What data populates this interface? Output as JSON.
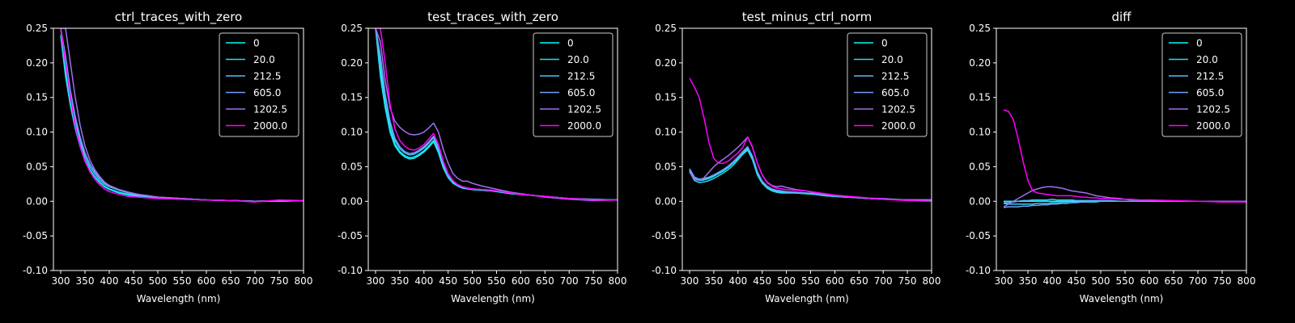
{
  "figure": {
    "background": "#000000",
    "foreground": "#ffffff"
  },
  "legend_entries": [
    "0",
    "20.0",
    "212.5",
    "605.0",
    "1202.5",
    "2000.0"
  ],
  "series_colors": [
    "#00ffff",
    "#21deef",
    "#4cc0ff",
    "#6fa0ff",
    "#a070f0",
    "#ff00ff"
  ],
  "chart_data": [
    {
      "type": "line",
      "title": "ctrl_traces_with_zero",
      "xlabel": "Wavelength (nm)",
      "ylabel": "",
      "xlim": [
        285,
        800
      ],
      "ylim": [
        -0.1,
        0.25
      ],
      "xticks": [
        300,
        350,
        400,
        450,
        500,
        550,
        600,
        650,
        700,
        750,
        800
      ],
      "yticks": [
        -0.1,
        -0.05,
        0.0,
        0.05,
        0.1,
        0.15,
        0.2,
        0.25
      ],
      "legend_position": "top-right",
      "x": [
        300,
        310,
        320,
        330,
        340,
        350,
        360,
        370,
        380,
        390,
        400,
        420,
        440,
        460,
        480,
        500,
        550,
        600,
        650,
        700,
        750,
        800
      ],
      "series": [
        {
          "name": "0",
          "values": [
            0.25,
            0.19,
            0.145,
            0.11,
            0.082,
            0.06,
            0.046,
            0.036,
            0.028,
            0.022,
            0.018,
            0.013,
            0.01,
            0.008,
            0.006,
            0.005,
            0.003,
            0.002,
            0.001,
            0.0,
            0.0,
            0.001
          ]
        },
        {
          "name": "20.0",
          "values": [
            0.24,
            0.18,
            0.138,
            0.105,
            0.079,
            0.058,
            0.045,
            0.035,
            0.027,
            0.021,
            0.017,
            0.012,
            0.009,
            0.007,
            0.006,
            0.005,
            0.003,
            0.002,
            0.001,
            0.0,
            0.0,
            0.001
          ]
        },
        {
          "name": "212.5",
          "values": [
            0.25,
            0.2,
            0.15,
            0.115,
            0.087,
            0.065,
            0.05,
            0.04,
            0.031,
            0.025,
            0.021,
            0.016,
            0.012,
            0.009,
            0.007,
            0.006,
            0.004,
            0.002,
            0.001,
            0.0,
            0.001,
            0.001
          ]
        },
        {
          "name": "605.0",
          "values": [
            0.25,
            0.21,
            0.16,
            0.122,
            0.093,
            0.07,
            0.054,
            0.043,
            0.034,
            0.027,
            0.022,
            0.017,
            0.013,
            0.01,
            0.008,
            0.006,
            0.004,
            0.002,
            0.001,
            0.0,
            0.001,
            0.001
          ]
        },
        {
          "name": "1202.5",
          "values": [
            0.25,
            0.25,
            0.2,
            0.15,
            0.11,
            0.08,
            0.06,
            0.046,
            0.036,
            0.028,
            0.023,
            0.017,
            0.013,
            0.01,
            0.008,
            0.006,
            0.004,
            0.002,
            0.001,
            0.0,
            0.001,
            0.001
          ]
        },
        {
          "name": "2000.0",
          "values": [
            0.25,
            0.2,
            0.15,
            0.11,
            0.08,
            0.058,
            0.043,
            0.032,
            0.024,
            0.018,
            0.014,
            0.01,
            0.007,
            0.006,
            0.005,
            0.004,
            0.003,
            0.002,
            0.001,
            -0.001,
            0.002,
            0.001
          ]
        }
      ]
    },
    {
      "type": "line",
      "title": "test_traces_with_zero",
      "xlabel": "Wavelength (nm)",
      "ylabel": "",
      "xlim": [
        285,
        800
      ],
      "ylim": [
        -0.1,
        0.25
      ],
      "xticks": [
        300,
        350,
        400,
        450,
        500,
        550,
        600,
        650,
        700,
        750,
        800
      ],
      "yticks": [
        -0.1,
        -0.05,
        0.0,
        0.05,
        0.1,
        0.15,
        0.2,
        0.25
      ],
      "legend_position": "top-right",
      "x": [
        300,
        310,
        320,
        330,
        340,
        350,
        360,
        370,
        380,
        390,
        400,
        410,
        420,
        430,
        440,
        450,
        460,
        470,
        480,
        490,
        500,
        520,
        540,
        560,
        580,
        600,
        650,
        700,
        750,
        800
      ],
      "series": [
        {
          "name": "0",
          "values": [
            0.25,
            0.19,
            0.14,
            0.105,
            0.083,
            0.072,
            0.066,
            0.063,
            0.064,
            0.068,
            0.073,
            0.08,
            0.088,
            0.072,
            0.05,
            0.035,
            0.027,
            0.022,
            0.019,
            0.018,
            0.017,
            0.016,
            0.015,
            0.013,
            0.011,
            0.01,
            0.007,
            0.004,
            0.002,
            0.002
          ]
        },
        {
          "name": "20.0",
          "values": [
            0.25,
            0.18,
            0.135,
            0.1,
            0.08,
            0.07,
            0.064,
            0.061,
            0.062,
            0.066,
            0.071,
            0.078,
            0.086,
            0.07,
            0.048,
            0.034,
            0.026,
            0.022,
            0.019,
            0.018,
            0.017,
            0.016,
            0.015,
            0.013,
            0.011,
            0.01,
            0.007,
            0.004,
            0.002,
            0.002
          ]
        },
        {
          "name": "212.5",
          "values": [
            0.25,
            0.2,
            0.15,
            0.112,
            0.088,
            0.076,
            0.07,
            0.067,
            0.068,
            0.072,
            0.077,
            0.084,
            0.092,
            0.076,
            0.053,
            0.037,
            0.028,
            0.023,
            0.02,
            0.019,
            0.018,
            0.017,
            0.016,
            0.014,
            0.012,
            0.01,
            0.007,
            0.004,
            0.003,
            0.002
          ]
        },
        {
          "name": "605.0",
          "values": [
            0.25,
            0.21,
            0.155,
            0.116,
            0.091,
            0.079,
            0.072,
            0.069,
            0.07,
            0.074,
            0.079,
            0.086,
            0.094,
            0.078,
            0.054,
            0.038,
            0.029,
            0.024,
            0.021,
            0.019,
            0.018,
            0.017,
            0.016,
            0.014,
            0.012,
            0.01,
            0.007,
            0.004,
            0.003,
            0.002
          ]
        },
        {
          "name": "1202.5",
          "values": [
            0.25,
            0.23,
            0.175,
            0.135,
            0.116,
            0.107,
            0.101,
            0.097,
            0.096,
            0.097,
            0.1,
            0.106,
            0.113,
            0.1,
            0.075,
            0.055,
            0.04,
            0.033,
            0.029,
            0.029,
            0.026,
            0.022,
            0.019,
            0.016,
            0.013,
            0.011,
            0.006,
            0.003,
            0.001,
            0.002
          ]
        },
        {
          "name": "2000.0",
          "values": [
            0.25,
            0.25,
            0.2,
            0.14,
            0.105,
            0.088,
            0.08,
            0.075,
            0.074,
            0.077,
            0.082,
            0.09,
            0.098,
            0.082,
            0.058,
            0.04,
            0.03,
            0.024,
            0.021,
            0.019,
            0.018,
            0.017,
            0.016,
            0.014,
            0.012,
            0.01,
            0.007,
            0.004,
            0.002,
            0.002
          ]
        }
      ]
    },
    {
      "type": "line",
      "title": "test_minus_ctrl_norm",
      "xlabel": "Wavelength (nm)",
      "ylabel": "",
      "xlim": [
        285,
        800
      ],
      "ylim": [
        -0.1,
        0.25
      ],
      "xticks": [
        300,
        350,
        400,
        450,
        500,
        550,
        600,
        650,
        700,
        750,
        800
      ],
      "yticks": [
        -0.1,
        -0.05,
        0.0,
        0.05,
        0.1,
        0.15,
        0.2,
        0.25
      ],
      "legend_position": "top-right",
      "x": [
        300,
        310,
        320,
        330,
        340,
        350,
        360,
        370,
        380,
        390,
        400,
        410,
        420,
        430,
        440,
        450,
        460,
        470,
        480,
        490,
        500,
        520,
        540,
        560,
        580,
        600,
        650,
        700,
        750,
        800
      ],
      "series": [
        {
          "name": "0",
          "values": [
            0.045,
            0.033,
            0.03,
            0.031,
            0.033,
            0.036,
            0.04,
            0.044,
            0.049,
            0.055,
            0.062,
            0.07,
            0.076,
            0.062,
            0.04,
            0.027,
            0.02,
            0.016,
            0.014,
            0.013,
            0.013,
            0.012,
            0.011,
            0.01,
            0.008,
            0.007,
            0.005,
            0.003,
            0.002,
            0.002
          ]
        },
        {
          "name": "20.0",
          "values": [
            0.043,
            0.03,
            0.027,
            0.028,
            0.03,
            0.033,
            0.037,
            0.041,
            0.046,
            0.052,
            0.06,
            0.068,
            0.074,
            0.06,
            0.038,
            0.026,
            0.019,
            0.015,
            0.013,
            0.012,
            0.012,
            0.012,
            0.011,
            0.01,
            0.008,
            0.007,
            0.005,
            0.003,
            0.002,
            0.002
          ]
        },
        {
          "name": "212.5",
          "values": [
            0.046,
            0.034,
            0.031,
            0.032,
            0.034,
            0.037,
            0.041,
            0.045,
            0.05,
            0.056,
            0.063,
            0.071,
            0.078,
            0.064,
            0.042,
            0.028,
            0.021,
            0.017,
            0.015,
            0.014,
            0.013,
            0.013,
            0.012,
            0.011,
            0.009,
            0.008,
            0.005,
            0.003,
            0.002,
            0.002
          ]
        },
        {
          "name": "605.0",
          "values": [
            0.047,
            0.035,
            0.032,
            0.033,
            0.035,
            0.038,
            0.042,
            0.046,
            0.051,
            0.057,
            0.064,
            0.072,
            0.079,
            0.065,
            0.043,
            0.029,
            0.022,
            0.018,
            0.016,
            0.015,
            0.014,
            0.013,
            0.012,
            0.011,
            0.009,
            0.008,
            0.005,
            0.003,
            0.002,
            0.002
          ]
        },
        {
          "name": "1202.5",
          "values": [
            0.042,
            0.032,
            0.03,
            0.034,
            0.042,
            0.05,
            0.056,
            0.061,
            0.066,
            0.072,
            0.078,
            0.085,
            0.093,
            0.078,
            0.055,
            0.038,
            0.028,
            0.023,
            0.021,
            0.022,
            0.02,
            0.017,
            0.015,
            0.012,
            0.01,
            0.008,
            0.005,
            0.004,
            0.002,
            0.002
          ]
        },
        {
          "name": "2000.0",
          "values": [
            0.178,
            0.165,
            0.15,
            0.12,
            0.085,
            0.062,
            0.055,
            0.055,
            0.058,
            0.064,
            0.07,
            0.078,
            0.093,
            0.079,
            0.055,
            0.038,
            0.027,
            0.022,
            0.019,
            0.018,
            0.017,
            0.016,
            0.015,
            0.013,
            0.011,
            0.009,
            0.006,
            0.003,
            0.001,
            0.0
          ]
        }
      ]
    },
    {
      "type": "line",
      "title": "diff",
      "xlabel": "Wavelength (nm)",
      "ylabel": "",
      "xlim": [
        285,
        800
      ],
      "ylim": [
        -0.1,
        0.25
      ],
      "xticks": [
        300,
        350,
        400,
        450,
        500,
        550,
        600,
        650,
        700,
        750,
        800
      ],
      "yticks": [
        -0.1,
        -0.05,
        0.0,
        0.05,
        0.1,
        0.15,
        0.2,
        0.25
      ],
      "legend_position": "top-right",
      "x": [
        300,
        310,
        320,
        330,
        340,
        350,
        360,
        370,
        380,
        390,
        400,
        410,
        420,
        430,
        440,
        450,
        460,
        470,
        480,
        490,
        500,
        520,
        540,
        560,
        580,
        600,
        650,
        700,
        750,
        800
      ],
      "series": [
        {
          "name": "0",
          "values": [
            0.0,
            0.0,
            0.0,
            0.0,
            0.0,
            0.0,
            0.0,
            0.0,
            0.0,
            0.0,
            0.0,
            0.0,
            0.0,
            0.0,
            0.0,
            0.0,
            0.0,
            0.0,
            0.0,
            0.0,
            0.0,
            0.0,
            0.0,
            0.0,
            0.0,
            0.0,
            0.0,
            0.0,
            0.0,
            0.0
          ]
        },
        {
          "name": "20.0",
          "values": [
            -0.003,
            -0.004,
            -0.004,
            -0.004,
            -0.004,
            -0.004,
            -0.004,
            -0.003,
            -0.003,
            -0.003,
            -0.002,
            -0.002,
            -0.002,
            -0.002,
            -0.002,
            -0.001,
            -0.001,
            -0.001,
            -0.001,
            -0.001,
            0.0,
            0.0,
            0.0,
            0.0,
            0.0,
            0.0,
            0.0,
            0.0,
            0.0,
            0.0
          ]
        },
        {
          "name": "212.5",
          "values": [
            -0.002,
            -0.002,
            -0.001,
            0.0,
            0.001,
            0.001,
            0.002,
            0.002,
            0.002,
            0.002,
            0.003,
            0.002,
            0.002,
            0.002,
            0.002,
            0.001,
            0.001,
            0.001,
            0.001,
            0.001,
            0.001,
            0.001,
            0.0,
            0.0,
            0.0,
            0.0,
            0.0,
            0.0,
            0.0,
            0.0
          ]
        },
        {
          "name": "605.0",
          "values": [
            -0.009,
            -0.008,
            -0.008,
            -0.008,
            -0.007,
            -0.007,
            -0.006,
            -0.006,
            -0.005,
            -0.005,
            -0.004,
            -0.004,
            -0.003,
            -0.003,
            -0.002,
            -0.002,
            -0.001,
            -0.001,
            0.0,
            0.0,
            0.0,
            0.0,
            0.0,
            0.0,
            0.0,
            0.0,
            0.0,
            0.0,
            0.0,
            0.0
          ]
        },
        {
          "name": "1202.5",
          "values": [
            -0.008,
            -0.004,
            0.0,
            0.004,
            0.008,
            0.012,
            0.016,
            0.018,
            0.02,
            0.021,
            0.021,
            0.02,
            0.019,
            0.017,
            0.015,
            0.014,
            0.013,
            0.012,
            0.01,
            0.008,
            0.007,
            0.005,
            0.004,
            0.002,
            0.002,
            0.001,
            0.0,
            0.0,
            0.0,
            0.0
          ]
        },
        {
          "name": "2000.0",
          "values": [
            0.132,
            0.13,
            0.118,
            0.09,
            0.058,
            0.03,
            0.015,
            0.012,
            0.011,
            0.01,
            0.009,
            0.008,
            0.008,
            0.008,
            0.008,
            0.007,
            0.006,
            0.006,
            0.005,
            0.005,
            0.004,
            0.004,
            0.003,
            0.003,
            0.002,
            0.002,
            0.001,
            0.0,
            -0.001,
            -0.001
          ]
        }
      ]
    }
  ]
}
